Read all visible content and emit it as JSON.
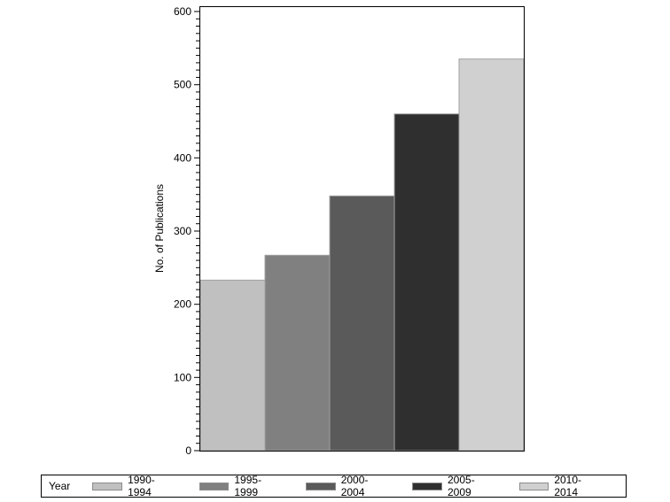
{
  "chart_data": {
    "type": "bar",
    "title": "",
    "xlabel": "",
    "ylabel": "No. of Publications",
    "ylim": [
      0,
      600
    ],
    "yticks": [
      0,
      100,
      200,
      300,
      400,
      500,
      600
    ],
    "grid": false,
    "legend_position": "bottom",
    "legend_title": "Year",
    "categories": [
      "1990-1994",
      "1995-1999",
      "2000-2004",
      "2005-2009",
      "2010-2014"
    ],
    "values": [
      233,
      267,
      348,
      460,
      535
    ],
    "colors": [
      "#c0c0c0",
      "#808080",
      "#5a5a5a",
      "#2f2f2f",
      "#d0d0d0"
    ]
  },
  "legend": {
    "title": "Year",
    "items": [
      {
        "label": "1990-1994",
        "color": "#c0c0c0"
      },
      {
        "label": "1995-1999",
        "color": "#808080"
      },
      {
        "label": "2000-2004",
        "color": "#5a5a5a"
      },
      {
        "label": "2005-2009",
        "color": "#2f2f2f"
      },
      {
        "label": "2010-2014",
        "color": "#d0d0d0"
      }
    ]
  }
}
